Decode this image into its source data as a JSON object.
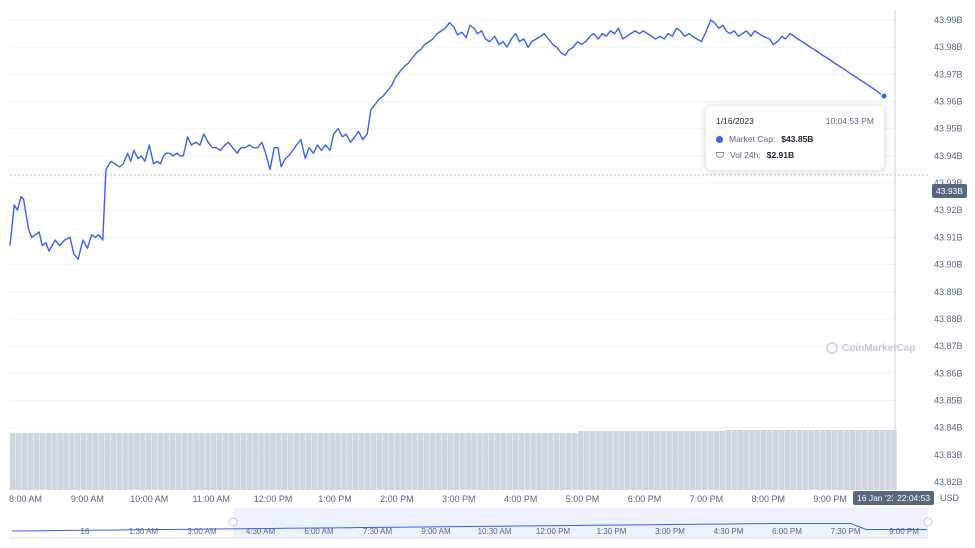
{
  "chart_data": {
    "type": "line",
    "y_unit_suffix": "B",
    "yticks": [
      "43.99B",
      "43.98B",
      "43.97B",
      "43.96B",
      "43.95B",
      "43.94B",
      "43.93B",
      "43.92B",
      "43.91B",
      "43.90B",
      "43.89B",
      "43.88B",
      "43.87B",
      "43.86B",
      "43.85B",
      "43.84B",
      "43.83B",
      "43.82B"
    ],
    "ylim": [
      43.82,
      43.99
    ],
    "xticks": [
      "8:00 AM",
      "9:00 AM",
      "10:00 AM",
      "11:00 AM",
      "12:00 PM",
      "1:00 PM",
      "2:00 PM",
      "3:00 PM",
      "4:00 PM",
      "5:00 PM",
      "6:00 PM",
      "7:00 PM",
      "8:00 PM",
      "9:00 PM"
    ],
    "xlim_hours": [
      7.75,
      22.08
    ],
    "series": [
      {
        "metric": "Market Cap",
        "color": "#3861fb",
        "x": [
          7.75,
          7.82,
          7.87,
          7.93,
          7.97,
          8.05,
          8.1,
          8.22,
          8.27,
          8.33,
          8.38,
          8.48,
          8.55,
          8.63,
          8.72,
          8.78,
          8.85,
          8.93,
          9.0,
          9.07,
          9.13,
          9.18,
          9.25,
          9.3,
          9.38,
          9.45,
          9.52,
          9.58,
          9.65,
          9.7,
          9.75,
          9.82,
          9.87,
          9.93,
          10.0,
          10.07,
          10.13,
          10.18,
          10.23,
          10.28,
          10.33,
          10.38,
          10.45,
          10.5,
          10.55,
          10.62,
          10.68,
          10.75,
          10.82,
          10.88,
          10.95,
          11.02,
          11.08,
          11.15,
          11.22,
          11.28,
          11.35,
          11.42,
          11.48,
          11.55,
          11.62,
          11.68,
          11.75,
          11.82,
          11.88,
          11.95,
          12.02,
          12.08,
          12.13,
          12.2,
          12.25,
          12.32,
          12.38,
          12.45,
          12.52,
          12.58,
          12.65,
          12.72,
          12.78,
          12.85,
          12.92,
          12.98,
          13.05,
          13.12,
          13.18,
          13.25,
          13.32,
          13.38,
          13.45,
          13.52,
          13.58,
          13.65,
          13.72,
          13.78,
          13.85,
          13.92,
          13.98,
          14.05,
          14.12,
          14.18,
          14.25,
          14.32,
          14.38,
          14.45,
          14.52,
          14.58,
          14.65,
          14.72,
          14.78,
          14.85,
          14.92,
          14.98,
          15.05,
          15.12,
          15.18,
          15.25,
          15.3,
          15.37,
          15.43,
          15.5,
          15.58,
          15.65,
          15.72,
          15.78,
          15.85,
          15.92,
          15.98,
          16.05,
          16.12,
          16.18,
          16.25,
          16.32,
          16.38,
          16.45,
          16.52,
          16.58,
          16.65,
          16.72,
          16.78,
          16.85,
          16.92,
          16.98,
          17.05,
          17.12,
          17.18,
          17.25,
          17.32,
          17.38,
          17.45,
          17.52,
          17.58,
          17.65,
          17.72,
          17.78,
          17.85,
          17.92,
          17.98,
          18.05,
          18.12,
          18.18,
          18.25,
          18.32,
          18.38,
          18.45,
          18.52,
          18.58,
          18.65,
          18.72,
          18.78,
          18.85,
          18.92,
          19.0,
          19.07,
          19.13,
          19.2,
          19.27,
          19.32,
          19.38,
          19.45,
          19.52,
          19.58,
          19.65,
          19.72,
          19.78,
          19.85,
          19.92,
          20.02,
          20.08,
          20.15,
          20.22,
          20.28,
          20.35,
          20.42,
          20.48,
          20.55,
          20.62,
          20.68,
          20.75,
          20.82,
          20.88,
          20.95,
          21.02,
          21.08,
          21.15,
          21.22,
          21.28,
          21.35,
          21.42,
          21.48,
          21.55,
          21.62,
          21.68,
          21.75,
          21.8,
          21.87
        ],
        "y": [
          43.907,
          43.922,
          43.92,
          43.925,
          43.924,
          43.913,
          43.91,
          43.912,
          43.907,
          43.908,
          43.905,
          43.909,
          43.907,
          43.909,
          43.91,
          43.904,
          43.902,
          43.909,
          43.906,
          43.911,
          43.91,
          43.911,
          43.909,
          43.935,
          43.938,
          43.937,
          43.936,
          43.937,
          43.941,
          43.938,
          43.942,
          43.939,
          43.94,
          43.938,
          43.944,
          43.937,
          43.938,
          43.937,
          43.94,
          43.941,
          43.941,
          43.94,
          43.941,
          43.94,
          43.94,
          43.947,
          43.944,
          43.945,
          43.944,
          43.948,
          43.945,
          43.943,
          43.943,
          43.942,
          43.944,
          43.945,
          43.943,
          43.941,
          43.943,
          43.943,
          43.944,
          43.943,
          43.943,
          43.945,
          43.941,
          43.935,
          43.943,
          43.943,
          43.936,
          43.939,
          43.94,
          43.942,
          43.944,
          43.946,
          43.939,
          43.943,
          43.941,
          43.944,
          43.942,
          43.944,
          43.942,
          43.948,
          43.95,
          43.947,
          43.948,
          43.945,
          43.947,
          43.949,
          43.946,
          43.948,
          43.957,
          43.959,
          43.961,
          43.962,
          43.964,
          43.966,
          43.969,
          43.971,
          43.973,
          43.974,
          43.976,
          43.978,
          43.979,
          43.981,
          43.982,
          43.983,
          43.985,
          43.986,
          43.987,
          43.989,
          43.9875,
          43.9845,
          43.9855,
          43.9835,
          43.988,
          43.987,
          43.985,
          43.986,
          43.983,
          43.982,
          43.984,
          43.981,
          43.982,
          43.98,
          43.983,
          43.985,
          43.982,
          43.983,
          43.98,
          43.982,
          43.983,
          43.984,
          43.985,
          43.983,
          43.981,
          43.98,
          43.978,
          43.977,
          43.979,
          43.98,
          43.982,
          43.981,
          43.982,
          43.984,
          43.985,
          43.983,
          43.985,
          43.984,
          43.986,
          43.985,
          43.987,
          43.983,
          43.984,
          43.985,
          43.986,
          43.985,
          43.986,
          43.985,
          43.984,
          43.983,
          43.984,
          43.983,
          43.985,
          43.984,
          43.987,
          43.986,
          43.984,
          43.985,
          43.984,
          43.983,
          43.982,
          43.986,
          43.99,
          43.989,
          43.987,
          43.988,
          43.986,
          43.985,
          43.986,
          43.984,
          43.985,
          43.986,
          43.984,
          43.986,
          43.985,
          43.984,
          43.983,
          43.981,
          43.982,
          43.984,
          43.983,
          43.985,
          43.984,
          43.983,
          43.982,
          43.981,
          43.98,
          43.979,
          43.978,
          43.977,
          43.976,
          43.975,
          43.974,
          43.973,
          43.972,
          43.971,
          43.97,
          43.969,
          43.968,
          43.967,
          43.966,
          43.965,
          43.964,
          43.963,
          43.962
        ]
      },
      {
        "metric": "Vol 24h",
        "color": "#a6b0c3"
      }
    ],
    "tooltip": {
      "date": "1/16/2023",
      "time": "10:04:53 PM",
      "market_cap_label": "Market Cap:",
      "market_cap_value": "$43.85B",
      "vol_label": "Vol 24h:",
      "vol_value": "$2.91B"
    },
    "crosshair_y_label": "43.93B",
    "crosshair_x_label": "16 Jan '23",
    "crosshair_time_label": "22:04:53",
    "currency": "USD",
    "watermark": "CoinMarketCap",
    "navigator_ticks": [
      "16",
      "1:30 AM",
      "3:00 AM",
      "4:30 AM",
      "6:00 AM",
      "7:30 AM",
      "9:00 AM",
      "10:30 AM",
      "12:00 PM",
      "1:30 PM",
      "3:00 PM",
      "4:30 PM",
      "6:00 PM",
      "7:30 PM",
      "9:00 PM"
    ]
  }
}
